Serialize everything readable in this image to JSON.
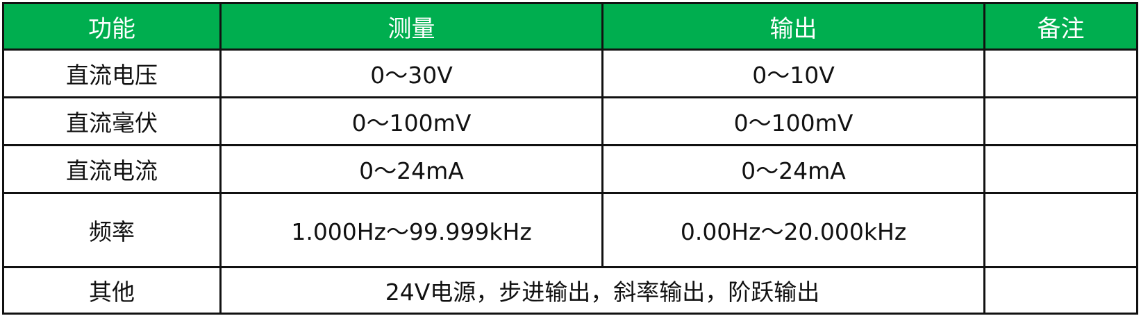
{
  "header_color": "#00AE4F",
  "columns": [
    "功能",
    "测量",
    "输出",
    "备注"
  ],
  "rows": [
    {
      "function": "直流电压",
      "measure": "0～30V",
      "output": "0～10V",
      "note": ""
    },
    {
      "function": "直流毫伏",
      "measure": "0～100mV",
      "output": "0～100mV",
      "note": ""
    },
    {
      "function": "直流电流",
      "measure": "0～24mA",
      "output": "0～24mA",
      "note": ""
    },
    {
      "function": "频率",
      "measure": "1.000Hz～99.999kHz",
      "output": "0.00Hz～20.000kHz",
      "note": ""
    }
  ],
  "other": {
    "function": "其他",
    "value": "24V电源，步进输出，斜率输出，阶跃输出"
  }
}
